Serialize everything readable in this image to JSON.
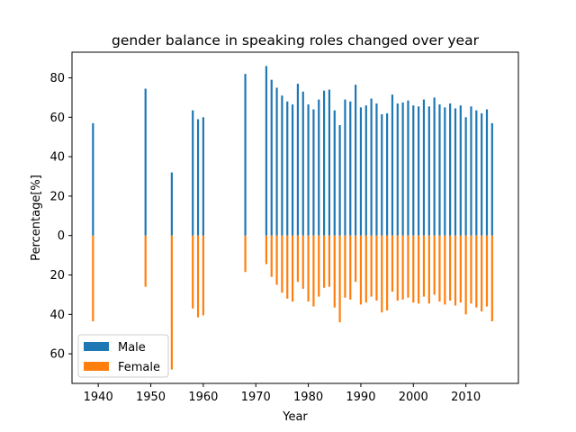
{
  "chart_data": {
    "type": "bar",
    "title": "gender balance in speaking roles changed over year",
    "xlabel": "Year",
    "ylabel": "Percentage[%]",
    "xlim": [
      1935,
      2020
    ],
    "ylim": [
      -75,
      93
    ],
    "xticks": [
      1940,
      1950,
      1960,
      1970,
      1980,
      1990,
      2000,
      2010
    ],
    "yticks": [
      {
        "value": 80,
        "label": "80"
      },
      {
        "value": 60,
        "label": "60"
      },
      {
        "value": 40,
        "label": "40"
      },
      {
        "value": 20,
        "label": "20"
      },
      {
        "value": 0,
        "label": "0"
      },
      {
        "value": -20,
        "label": "20"
      },
      {
        "value": -40,
        "label": "40"
      },
      {
        "value": -60,
        "label": "60"
      }
    ],
    "legend_position": "lower-left",
    "grid": false,
    "x": [
      1939,
      1949,
      1954,
      1958,
      1959,
      1960,
      1968,
      1972,
      1973,
      1974,
      1975,
      1976,
      1977,
      1978,
      1979,
      1980,
      1981,
      1982,
      1983,
      1984,
      1985,
      1986,
      1987,
      1988,
      1989,
      1990,
      1991,
      1992,
      1993,
      1994,
      1995,
      1996,
      1997,
      1998,
      1999,
      2000,
      2001,
      2002,
      2003,
      2004,
      2005,
      2006,
      2007,
      2008,
      2009,
      2010,
      2011,
      2012,
      2013,
      2014,
      2015
    ],
    "series": [
      {
        "name": "Male",
        "color": "#1f77b4",
        "direction": "up",
        "values": [
          57,
          74.5,
          32,
          63.5,
          59,
          60,
          82,
          86,
          79,
          75,
          71,
          68,
          66.5,
          77,
          73,
          66.5,
          64,
          69,
          73.5,
          74,
          63.5,
          56,
          69,
          68,
          76.5,
          65,
          66,
          69.5,
          67,
          61.5,
          62,
          71.5,
          67,
          67.5,
          68.5,
          66,
          65.5,
          69,
          65.5,
          70,
          66.5,
          65,
          67,
          64.5,
          66,
          60,
          65.5,
          63.5,
          62,
          64,
          57
        ]
      },
      {
        "name": "Female",
        "color": "#ff7f0e",
        "direction": "down",
        "values": [
          43.5,
          26,
          68,
          37,
          41.5,
          40.5,
          18.5,
          14.5,
          21,
          25,
          29,
          32,
          33.5,
          23.5,
          27,
          33.5,
          36,
          31,
          26.5,
          26,
          36.5,
          44,
          31.5,
          32.5,
          23.5,
          35,
          34,
          31,
          33,
          39,
          38,
          28.5,
          33,
          32.5,
          31.5,
          34,
          34.5,
          31,
          34.5,
          30,
          33.5,
          35,
          33,
          35.5,
          34,
          40,
          34.5,
          36.5,
          38.5,
          36,
          43.5
        ]
      }
    ]
  }
}
